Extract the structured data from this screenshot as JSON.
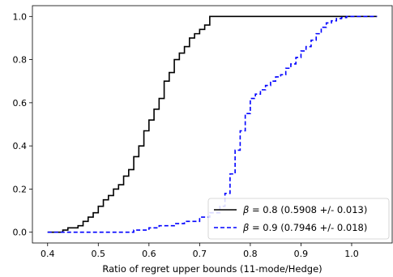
{
  "chart_data": {
    "type": "line",
    "title": "",
    "xlabel": "Ratio of regret upper bounds (11-mode/Hedge)",
    "ylabel": "",
    "xlim": [
      0.37,
      1.08
    ],
    "ylim": [
      -0.05,
      1.05
    ],
    "xticks": [
      0.4,
      0.5,
      0.6,
      0.7,
      0.8,
      0.9,
      1.0
    ],
    "xtick_labels": [
      "0.4",
      "0.5",
      "0.6",
      "0.7",
      "0.8",
      "0.9",
      "1.0"
    ],
    "yticks": [
      0.0,
      0.2,
      0.4,
      0.6,
      0.8,
      1.0
    ],
    "ytick_labels": [
      "0.0",
      "0.2",
      "0.4",
      "0.6",
      "0.8",
      "1.0"
    ],
    "grid": false,
    "legend_position": "bottom-right",
    "series": [
      {
        "name": "β = 0.8 (0.5908 +/- 0.013)",
        "legend_symbol": "β",
        "legend_rest": " = 0.8 (0.5908 +/- 0.013)",
        "color": "#000000",
        "style": "solid",
        "x": [
          0.4,
          0.42,
          0.43,
          0.44,
          0.45,
          0.46,
          0.47,
          0.48,
          0.49,
          0.5,
          0.51,
          0.52,
          0.53,
          0.54,
          0.55,
          0.56,
          0.57,
          0.58,
          0.59,
          0.6,
          0.61,
          0.62,
          0.63,
          0.64,
          0.65,
          0.66,
          0.67,
          0.68,
          0.69,
          0.7,
          0.71,
          0.72,
          0.75,
          1.0,
          1.05
        ],
        "y": [
          0.0,
          0.0,
          0.01,
          0.02,
          0.02,
          0.03,
          0.05,
          0.07,
          0.09,
          0.12,
          0.15,
          0.17,
          0.2,
          0.22,
          0.26,
          0.29,
          0.35,
          0.4,
          0.47,
          0.52,
          0.57,
          0.62,
          0.7,
          0.74,
          0.8,
          0.83,
          0.86,
          0.9,
          0.92,
          0.94,
          0.96,
          1.0,
          1.0,
          1.0,
          1.0
        ]
      },
      {
        "name": "β = 0.9 (0.7946 +/- 0.018)",
        "legend_symbol": "β",
        "legend_rest": " = 0.9 (0.7946 +/- 0.018)",
        "color": "#0000ff",
        "style": "dashed",
        "x": [
          0.4,
          0.55,
          0.57,
          0.6,
          0.62,
          0.65,
          0.67,
          0.7,
          0.72,
          0.74,
          0.75,
          0.76,
          0.77,
          0.78,
          0.79,
          0.8,
          0.81,
          0.82,
          0.83,
          0.84,
          0.85,
          0.86,
          0.87,
          0.88,
          0.89,
          0.9,
          0.91,
          0.92,
          0.93,
          0.94,
          0.95,
          0.96,
          0.97,
          0.98,
          0.99,
          1.0,
          1.05
        ],
        "y": [
          0.0,
          0.0,
          0.01,
          0.02,
          0.03,
          0.04,
          0.05,
          0.07,
          0.09,
          0.12,
          0.18,
          0.27,
          0.38,
          0.47,
          0.55,
          0.62,
          0.64,
          0.66,
          0.68,
          0.7,
          0.72,
          0.73,
          0.76,
          0.78,
          0.81,
          0.84,
          0.86,
          0.89,
          0.92,
          0.95,
          0.97,
          0.98,
          0.99,
          0.995,
          1.0,
          1.0,
          1.0
        ]
      }
    ]
  }
}
